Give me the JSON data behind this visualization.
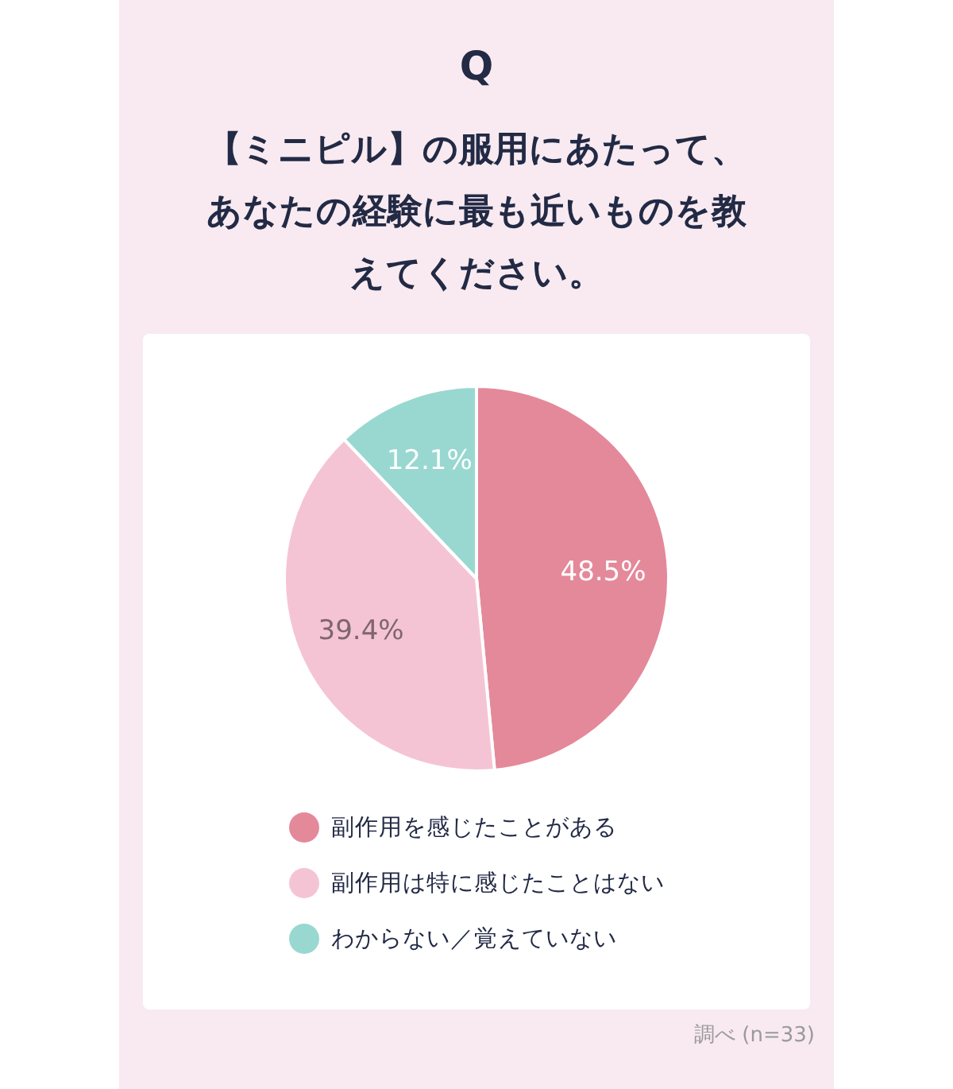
{
  "chart_data": {
    "type": "pie",
    "title": "Q",
    "subtitle": "【ミニピル】の服用にあたって、あなたの経験に最も近いものを教えてください。",
    "categories": [
      "副作用を感じたことがある",
      "副作用は特に感じたことはない",
      "わからない／覚えていない"
    ],
    "values": [
      48.5,
      39.4,
      12.1
    ],
    "colors": [
      "#e4899a",
      "#f5c4d4",
      "#98d8d0"
    ],
    "value_labels": [
      "48.5%",
      "39.4%",
      "12.1%"
    ],
    "legend": "bottom",
    "annotations": [
      "調べ (n=33)"
    ]
  }
}
